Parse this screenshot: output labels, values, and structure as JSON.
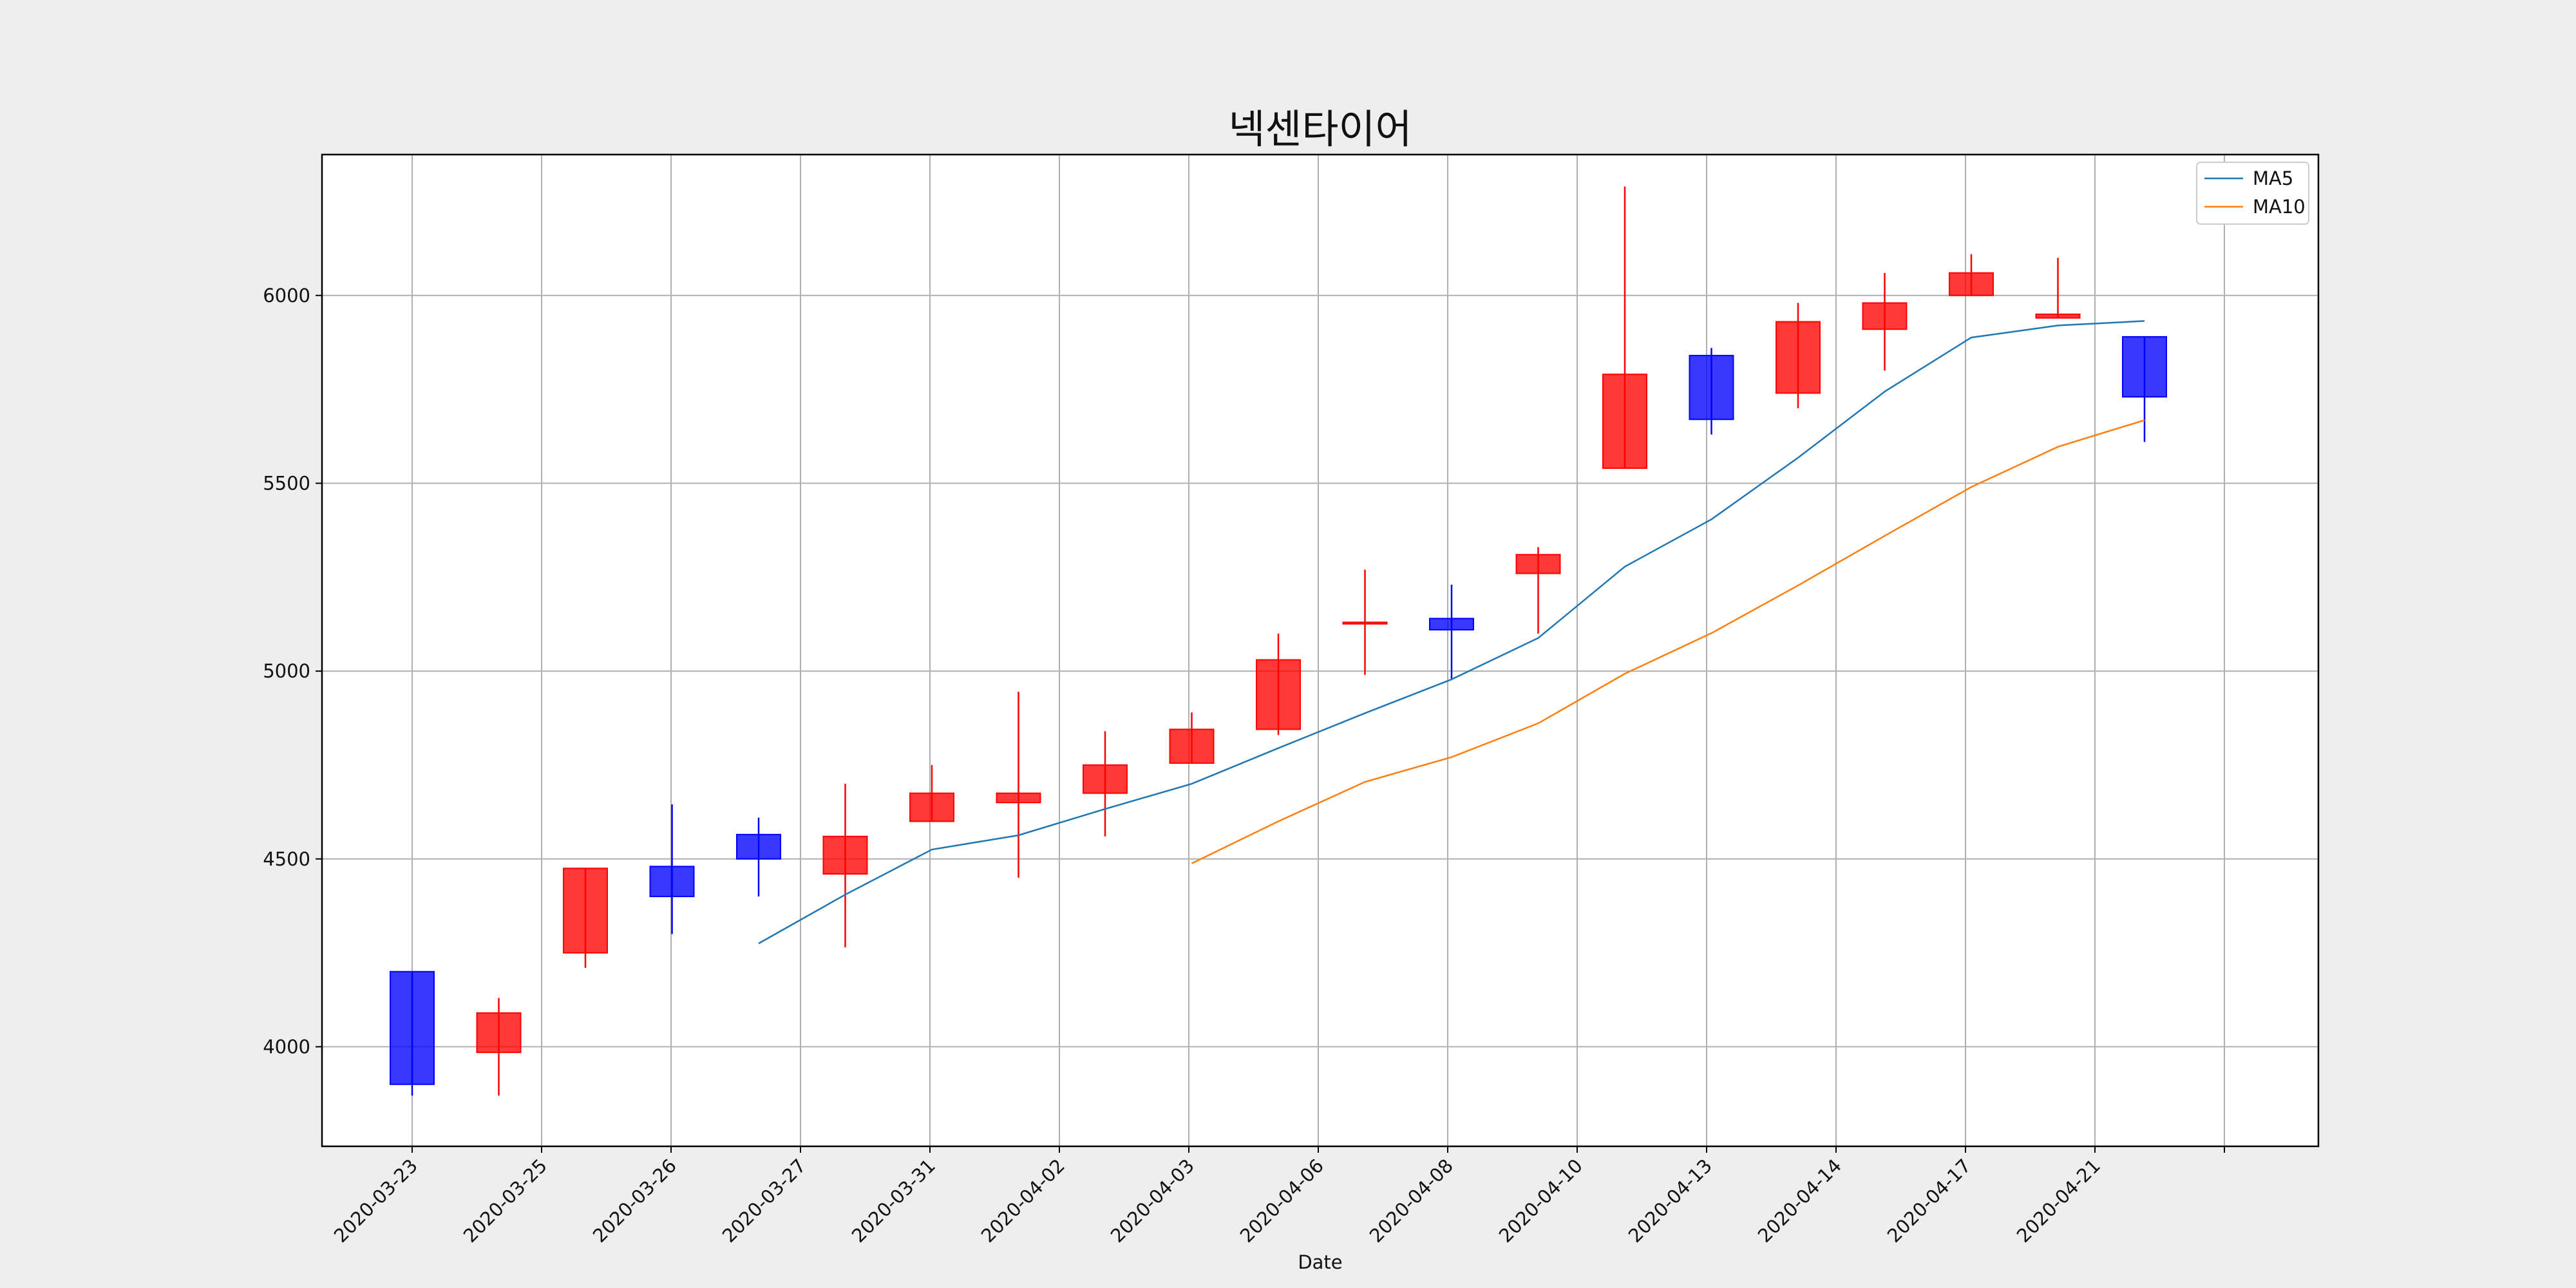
{
  "chart_data": {
    "type": "candlestick",
    "title": "넥센타이어",
    "xlabel": "Date",
    "ylabel": "",
    "ylim": [
      3735,
      6375
    ],
    "yticks": [
      4000,
      4500,
      5000,
      5500,
      6000
    ],
    "xtick_labels": [
      "2020-03-23",
      "2020-03-25",
      "2020-03-26",
      "2020-03-27",
      "2020-03-31",
      "2020-04-02",
      "2020-04-03",
      "2020-04-06",
      "2020-04-08",
      "2020-04-10",
      "2020-04-13",
      "2020-04-14",
      "2020-04-17",
      "2020-04-21"
    ],
    "grid": true,
    "legend_position": "top-right",
    "up_color": "#ff0000",
    "down_color": "#0000ff",
    "candles": [
      {
        "open": 4200,
        "high": 4200,
        "low": 3870,
        "close": 3900
      },
      {
        "open": 3985,
        "high": 4130,
        "low": 3870,
        "close": 4090
      },
      {
        "open": 4250,
        "high": 4475,
        "low": 4210,
        "close": 4475
      },
      {
        "open": 4480,
        "high": 4645,
        "low": 4300,
        "close": 4400
      },
      {
        "open": 4565,
        "high": 4610,
        "low": 4400,
        "close": 4500
      },
      {
        "open": 4460,
        "high": 4700,
        "low": 4265,
        "close": 4560
      },
      {
        "open": 4600,
        "high": 4750,
        "low": 4600,
        "close": 4675
      },
      {
        "open": 4650,
        "high": 4945,
        "low": 4450,
        "close": 4675
      },
      {
        "open": 4675,
        "high": 4840,
        "low": 4560,
        "close": 4750
      },
      {
        "open": 4755,
        "high": 4890,
        "low": 4755,
        "close": 4845
      },
      {
        "open": 4845,
        "high": 5100,
        "low": 4830,
        "close": 5030
      },
      {
        "open": 5130,
        "high": 5270,
        "low": 4990,
        "close": 5130
      },
      {
        "open": 5140,
        "high": 5230,
        "low": 4980,
        "close": 5110
      },
      {
        "open": 5260,
        "high": 5330,
        "low": 5100,
        "close": 5310
      },
      {
        "open": 5540,
        "high": 6290,
        "low": 5540,
        "close": 5790
      },
      {
        "open": 5840,
        "high": 5860,
        "low": 5630,
        "close": 5670
      },
      {
        "open": 5740,
        "high": 5980,
        "low": 5700,
        "close": 5930
      },
      {
        "open": 5910,
        "high": 6060,
        "low": 5800,
        "close": 5980
      },
      {
        "open": 6000,
        "high": 6110,
        "low": 6000,
        "close": 6060
      },
      {
        "open": 5940,
        "high": 6100,
        "low": 5940,
        "close": 5950
      },
      {
        "open": 5890,
        "high": 5890,
        "low": 5610,
        "close": 5730
      }
    ],
    "series": [
      {
        "name": "MA5",
        "color": "#1f77b4",
        "start_index": 4,
        "values": [
          4275,
          4405,
          4525,
          4563,
          4633,
          4700,
          4795,
          4888,
          4978,
          5088,
          5278,
          5404,
          5568,
          5744,
          5888,
          5920,
          5932
        ]
      },
      {
        "name": "MA10",
        "color": "#ff7f0e",
        "start_index": 9,
        "values": [
          4488,
          4600,
          4705,
          4771,
          4861,
          4993,
          5101,
          5228,
          5360,
          5490,
          5597,
          5668
        ]
      }
    ]
  }
}
